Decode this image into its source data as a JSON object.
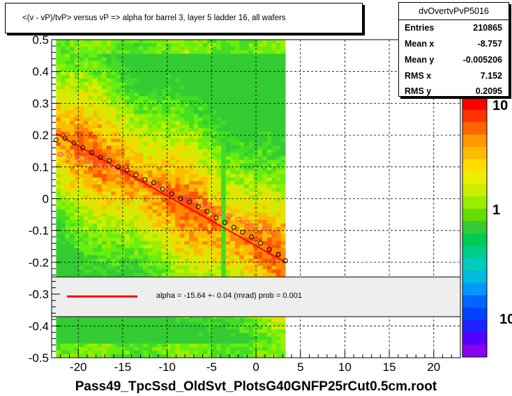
{
  "title": "<(v - vP)/tvP> versus   vP => alpha for barrel 3, layer 5 ladder 16, all wafers",
  "stats": {
    "name": "dvOvertvPvP5016",
    "rows": [
      {
        "label": "Entries",
        "value": "210865"
      },
      {
        "label": "Mean x",
        "value": "-8.757"
      },
      {
        "label": "Mean y",
        "value": "-0.005206"
      },
      {
        "label": "RMS x",
        "value": "7.152"
      },
      {
        "label": "RMS y",
        "value": "0.2095"
      }
    ]
  },
  "legend": {
    "text": "alpha =  -15.64 +-  0.04 (mrad) prob = 0.001",
    "line_color": "#ff0000"
  },
  "xlabel": "Pass49_TpcSsd_OldSvt_PlotsG40GNFP25rCut0.5cm.root",
  "chart_data": {
    "type": "heatmap",
    "title": "<(v - vP)/tvP> versus   vP => alpha for barrel 3, layer 5 ladder 16, all wafers",
    "xlabel": "Pass49_TpcSsd_OldSvt_PlotsG40GNFP25rCut0.5cm.root",
    "ylabel": "",
    "xlim": [
      -23,
      23
    ],
    "ylim": [
      -0.5,
      0.5
    ],
    "x_ticks": [
      -20,
      -15,
      -10,
      -5,
      0,
      5,
      10,
      15,
      20
    ],
    "y_ticks": [
      0.5,
      0.4,
      0.3,
      0.2,
      0.1,
      0,
      -0.1,
      -0.2,
      -0.3,
      -0.4,
      -0.5
    ],
    "x_tick_labels": [
      "-20",
      "-15",
      "-10",
      "-5",
      "0",
      "5",
      "10",
      "15",
      "20"
    ],
    "y_tick_labels": [
      "0.5",
      "0.4",
      "0.3",
      "0.2",
      "0.1",
      "0",
      "-0.1",
      "-0.2",
      "-0.3",
      "-0.4",
      "-0.5"
    ],
    "data_x_range": [
      -22.5,
      3.3
    ],
    "z_scale": "log",
    "z_tick_labels": [
      "10",
      "1",
      "10"
    ],
    "grid": true,
    "fit_line": {
      "x": [
        -22.5,
        3.3
      ],
      "y": [
        0.205,
        -0.2
      ]
    },
    "profile_black": {
      "x": [
        -22.5,
        -21.5,
        -20.5,
        -19.5,
        -18.5,
        -17.5,
        -16.5,
        -15.5,
        -14.5,
        -13.5,
        -12.5,
        -11.5,
        -10.5,
        -9.5,
        -8.5,
        -7.5,
        -6.5,
        -5.5,
        -4.5,
        -3.5,
        -2.5,
        -1.5,
        -0.5,
        0.5,
        1.5,
        2.5,
        3.3
      ],
      "y": [
        0.185,
        0.19,
        0.175,
        0.16,
        0.145,
        0.13,
        0.12,
        0.1,
        0.09,
        0.075,
        0.06,
        0.05,
        0.03,
        0.015,
        0.0,
        -0.01,
        -0.025,
        -0.04,
        -0.06,
        -0.075,
        -0.09,
        -0.105,
        -0.12,
        -0.14,
        -0.16,
        -0.175,
        -0.195
      ]
    },
    "profile_magenta": {
      "x": [
        -22.0,
        -21.0,
        -20.0,
        -19.0,
        -18.0,
        -17.0,
        -16.0,
        -15.0,
        -14.0,
        -13.0,
        -12.0,
        -11.0,
        -10.0,
        -9.0,
        -8.0,
        -7.0,
        -6.0,
        -5.0,
        -4.0,
        -3.0,
        -2.0,
        -1.0,
        0.0,
        1.0,
        2.0
      ],
      "y": [
        0.14,
        0.135,
        0.125,
        0.12,
        0.11,
        0.1,
        0.09,
        0.08,
        0.065,
        0.055,
        0.045,
        0.035,
        0.025,
        0.01,
        0.0,
        -0.01,
        -0.02,
        -0.03,
        -0.045,
        -0.055,
        -0.065,
        -0.075,
        -0.085,
        -0.095,
        -0.11
      ]
    }
  }
}
